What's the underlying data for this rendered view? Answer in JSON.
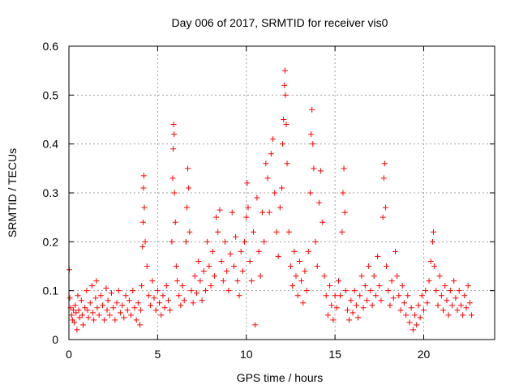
{
  "colors": {
    "series": "#ff0000",
    "axis": "#000000",
    "grid": "#a0a0a0",
    "background": "#ffffff"
  },
  "chart_data": {
    "type": "scatter",
    "title": "Day 006 of 2017, SRMTID for receiver vis0",
    "xlabel": "GPS time / hours",
    "ylabel": "SRMTID / TECUs",
    "xlim": [
      0,
      24
    ],
    "ylim": [
      0,
      0.6
    ],
    "xticks": [
      0,
      5,
      10,
      15,
      20
    ],
    "xtick_labels": [
      "0",
      "5",
      "10",
      "15",
      "20"
    ],
    "yticks": [
      0,
      0.1,
      0.2,
      0.3,
      0.4,
      0.5,
      0.6
    ],
    "ytick_labels": [
      "0",
      "0.1",
      "0.2",
      "0.3",
      "0.4",
      "0.5",
      "0.6"
    ],
    "grid": true,
    "marker": "+",
    "series": [
      {
        "name": "vis0",
        "points": [
          [
            0.02,
            0.143
          ],
          [
            0.05,
            0.085
          ],
          [
            0.1,
            0.065
          ],
          [
            0.15,
            0.05
          ],
          [
            0.2,
            0.04
          ],
          [
            0.25,
            0.06
          ],
          [
            0.3,
            0.035
          ],
          [
            0.35,
            0.07
          ],
          [
            0.4,
            0.055
          ],
          [
            0.45,
            0.02
          ],
          [
            0.5,
            0.09
          ],
          [
            0.55,
            0.06
          ],
          [
            0.6,
            0.045
          ],
          [
            0.7,
            0.08
          ],
          [
            0.75,
            0.05
          ],
          [
            0.8,
            0.03
          ],
          [
            0.9,
            0.065
          ],
          [
            1.0,
            0.1
          ],
          [
            1.05,
            0.06
          ],
          [
            1.1,
            0.045
          ],
          [
            1.2,
            0.075
          ],
          [
            1.3,
            0.11
          ],
          [
            1.35,
            0.055
          ],
          [
            1.4,
            0.04
          ],
          [
            1.5,
            0.085
          ],
          [
            1.55,
            0.12
          ],
          [
            1.6,
            0.065
          ],
          [
            1.7,
            0.05
          ],
          [
            1.8,
            0.09
          ],
          [
            1.9,
            0.07
          ],
          [
            2.0,
            0.04
          ],
          [
            2.1,
            0.105
          ],
          [
            2.15,
            0.06
          ],
          [
            2.2,
            0.08
          ],
          [
            2.3,
            0.05
          ],
          [
            2.4,
            0.095
          ],
          [
            2.5,
            0.065
          ],
          [
            2.6,
            0.04
          ],
          [
            2.7,
            0.075
          ],
          [
            2.8,
            0.1
          ],
          [
            2.9,
            0.055
          ],
          [
            3.0,
            0.07
          ],
          [
            3.1,
            0.045
          ],
          [
            3.2,
            0.09
          ],
          [
            3.3,
            0.06
          ],
          [
            3.4,
            0.08
          ],
          [
            3.5,
            0.05
          ],
          [
            3.6,
            0.1
          ],
          [
            3.7,
            0.065
          ],
          [
            3.8,
            0.04
          ],
          [
            3.9,
            0.075
          ],
          [
            4.0,
            0.03
          ],
          [
            4.05,
            0.06
          ],
          [
            4.1,
            0.11
          ],
          [
            4.15,
            0.19
          ],
          [
            4.18,
            0.24
          ],
          [
            4.2,
            0.31
          ],
          [
            4.22,
            0.335
          ],
          [
            4.25,
            0.27
          ],
          [
            4.3,
            0.2
          ],
          [
            4.4,
            0.15
          ],
          [
            4.5,
            0.09
          ],
          [
            4.6,
            0.07
          ],
          [
            4.7,
            0.12
          ],
          [
            4.8,
            0.085
          ],
          [
            4.9,
            0.06
          ],
          [
            5.0,
            0.1
          ],
          [
            5.1,
            0.075
          ],
          [
            5.2,
            0.05
          ],
          [
            5.3,
            0.09
          ],
          [
            5.4,
            0.065
          ],
          [
            5.5,
            0.11
          ],
          [
            5.6,
            0.08
          ],
          [
            5.7,
            0.06
          ],
          [
            5.8,
            0.2
          ],
          [
            5.85,
            0.33
          ],
          [
            5.88,
            0.39
          ],
          [
            5.9,
            0.44
          ],
          [
            5.93,
            0.42
          ],
          [
            5.95,
            0.3
          ],
          [
            6.0,
            0.24
          ],
          [
            6.05,
            0.15
          ],
          [
            6.1,
            0.12
          ],
          [
            6.2,
            0.09
          ],
          [
            6.3,
            0.07
          ],
          [
            6.4,
            0.11
          ],
          [
            6.5,
            0.08
          ],
          [
            6.6,
            0.2
          ],
          [
            6.65,
            0.27
          ],
          [
            6.7,
            0.35
          ],
          [
            6.75,
            0.31
          ],
          [
            6.8,
            0.22
          ],
          [
            6.9,
            0.1
          ],
          [
            7.0,
            0.075
          ],
          [
            7.1,
            0.13
          ],
          [
            7.2,
            0.095
          ],
          [
            7.3,
            0.16
          ],
          [
            7.4,
            0.12
          ],
          [
            7.5,
            0.08
          ],
          [
            7.6,
            0.14
          ],
          [
            7.7,
            0.1
          ],
          [
            7.8,
            0.2
          ],
          [
            7.9,
            0.15
          ],
          [
            8.0,
            0.11
          ],
          [
            8.1,
            0.18
          ],
          [
            8.2,
            0.13
          ],
          [
            8.3,
            0.25
          ],
          [
            8.4,
            0.22
          ],
          [
            8.5,
            0.265
          ],
          [
            8.6,
            0.16
          ],
          [
            8.7,
            0.12
          ],
          [
            8.8,
            0.2
          ],
          [
            8.9,
            0.14
          ],
          [
            9.0,
            0.1
          ],
          [
            9.1,
            0.175
          ],
          [
            9.2,
            0.26
          ],
          [
            9.3,
            0.15
          ],
          [
            9.4,
            0.21
          ],
          [
            9.5,
            0.12
          ],
          [
            9.6,
            0.09
          ],
          [
            9.7,
            0.18
          ],
          [
            9.8,
            0.14
          ],
          [
            9.9,
            0.2
          ],
          [
            10.0,
            0.25
          ],
          [
            10.05,
            0.32
          ],
          [
            10.1,
            0.27
          ],
          [
            10.2,
            0.16
          ],
          [
            10.3,
            0.12
          ],
          [
            10.4,
            0.22
          ],
          [
            10.5,
            0.03
          ],
          [
            10.6,
            0.29
          ],
          [
            10.7,
            0.18
          ],
          [
            10.8,
            0.13
          ],
          [
            10.9,
            0.26
          ],
          [
            11.0,
            0.2
          ],
          [
            11.1,
            0.36
          ],
          [
            11.2,
            0.33
          ],
          [
            11.3,
            0.26
          ],
          [
            11.4,
            0.38
          ],
          [
            11.5,
            0.41
          ],
          [
            11.6,
            0.3
          ],
          [
            11.7,
            0.22
          ],
          [
            11.8,
            0.17
          ],
          [
            11.9,
            0.27
          ],
          [
            12.0,
            0.31
          ],
          [
            12.05,
            0.4
          ],
          [
            12.1,
            0.45
          ],
          [
            12.15,
            0.52
          ],
          [
            12.18,
            0.55
          ],
          [
            12.2,
            0.5
          ],
          [
            12.25,
            0.44
          ],
          [
            12.3,
            0.36
          ],
          [
            12.4,
            0.22
          ],
          [
            12.5,
            0.15
          ],
          [
            12.6,
            0.11
          ],
          [
            12.7,
            0.18
          ],
          [
            12.8,
            0.13
          ],
          [
            12.9,
            0.09
          ],
          [
            13.0,
            0.16
          ],
          [
            13.1,
            0.12
          ],
          [
            13.2,
            0.075
          ],
          [
            13.3,
            0.14
          ],
          [
            13.4,
            0.1
          ],
          [
            13.5,
            0.18
          ],
          [
            13.6,
            0.3
          ],
          [
            13.65,
            0.42
          ],
          [
            13.7,
            0.47
          ],
          [
            13.75,
            0.4
          ],
          [
            13.8,
            0.35
          ],
          [
            13.9,
            0.2
          ],
          [
            14.0,
            0.15
          ],
          [
            14.1,
            0.28
          ],
          [
            14.2,
            0.345
          ],
          [
            14.3,
            0.24
          ],
          [
            14.4,
            0.13
          ],
          [
            14.5,
            0.09
          ],
          [
            14.6,
            0.05
          ],
          [
            14.7,
            0.11
          ],
          [
            14.8,
            0.07
          ],
          [
            14.9,
            0.04
          ],
          [
            15.0,
            0.09
          ],
          [
            15.1,
            0.065
          ],
          [
            15.2,
            0.12
          ],
          [
            15.3,
            0.09
          ],
          [
            15.4,
            0.22
          ],
          [
            15.45,
            0.3
          ],
          [
            15.5,
            0.35
          ],
          [
            15.55,
            0.26
          ],
          [
            15.6,
            0.1
          ],
          [
            15.7,
            0.06
          ],
          [
            15.8,
            0.04
          ],
          [
            15.9,
            0.08
          ],
          [
            16.0,
            0.055
          ],
          [
            16.1,
            0.1
          ],
          [
            16.2,
            0.07
          ],
          [
            16.3,
            0.045
          ],
          [
            16.4,
            0.09
          ],
          [
            16.5,
            0.13
          ],
          [
            16.6,
            0.065
          ],
          [
            16.7,
            0.11
          ],
          [
            16.8,
            0.08
          ],
          [
            16.9,
            0.15
          ],
          [
            17.0,
            0.1
          ],
          [
            17.1,
            0.07
          ],
          [
            17.2,
            0.13
          ],
          [
            17.3,
            0.09
          ],
          [
            17.4,
            0.17
          ],
          [
            17.5,
            0.11
          ],
          [
            17.6,
            0.08
          ],
          [
            17.7,
            0.25
          ],
          [
            17.75,
            0.33
          ],
          [
            17.8,
            0.36
          ],
          [
            17.85,
            0.27
          ],
          [
            17.9,
            0.15
          ],
          [
            18.0,
            0.1
          ],
          [
            18.1,
            0.07
          ],
          [
            18.2,
            0.12
          ],
          [
            18.3,
            0.085
          ],
          [
            18.4,
            0.18
          ],
          [
            18.5,
            0.13
          ],
          [
            18.6,
            0.09
          ],
          [
            18.7,
            0.06
          ],
          [
            18.8,
            0.11
          ],
          [
            18.9,
            0.075
          ],
          [
            19.0,
            0.05
          ],
          [
            19.1,
            0.09
          ],
          [
            19.2,
            0.035
          ],
          [
            19.3,
            0.065
          ],
          [
            19.4,
            0.02
          ],
          [
            19.5,
            0.05
          ],
          [
            19.6,
            0.03
          ],
          [
            19.7,
            0.07
          ],
          [
            19.8,
            0.045
          ],
          [
            19.9,
            0.09
          ],
          [
            20.0,
            0.06
          ],
          [
            20.1,
            0.1
          ],
          [
            20.2,
            0.075
          ],
          [
            20.3,
            0.12
          ],
          [
            20.4,
            0.16
          ],
          [
            20.5,
            0.2
          ],
          [
            20.55,
            0.22
          ],
          [
            20.6,
            0.15
          ],
          [
            20.7,
            0.1
          ],
          [
            20.8,
            0.07
          ],
          [
            20.9,
            0.13
          ],
          [
            21.0,
            0.09
          ],
          [
            21.1,
            0.06
          ],
          [
            21.2,
            0.11
          ],
          [
            21.3,
            0.08
          ],
          [
            21.4,
            0.05
          ],
          [
            21.5,
            0.1
          ],
          [
            21.6,
            0.07
          ],
          [
            21.7,
            0.12
          ],
          [
            21.8,
            0.085
          ],
          [
            21.9,
            0.06
          ],
          [
            22.0,
            0.1
          ],
          [
            22.1,
            0.07
          ],
          [
            22.2,
            0.05
          ],
          [
            22.3,
            0.09
          ],
          [
            22.4,
            0.065
          ],
          [
            22.5,
            0.11
          ],
          [
            22.6,
            0.075
          ],
          [
            22.7,
            0.05
          ]
        ]
      }
    ]
  }
}
